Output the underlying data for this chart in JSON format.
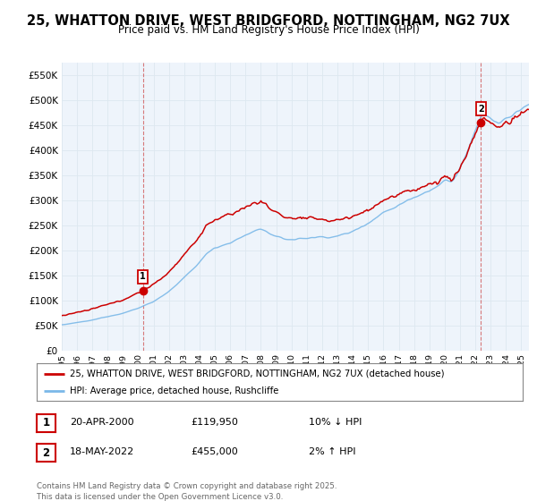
{
  "title": "25, WHATTON DRIVE, WEST BRIDGFORD, NOTTINGHAM, NG2 7UX",
  "subtitle": "Price paid vs. HM Land Registry's House Price Index (HPI)",
  "hpi_color": "#7ab8e8",
  "price_color": "#cc0000",
  "bg_color": "#ffffff",
  "grid_color": "#dde8f0",
  "xlim_start": 1995,
  "xlim_end": 2025.5,
  "ylim_min": 0,
  "ylim_max": 575000,
  "transactions": [
    {
      "date_num": 2000.29,
      "price": 119950,
      "label": "1"
    },
    {
      "date_num": 2022.37,
      "price": 455000,
      "label": "2"
    }
  ],
  "transaction1_label": "1",
  "transaction1_date": "20-APR-2000",
  "transaction1_price": "£119,950",
  "transaction1_hpi": "10% ↓ HPI",
  "transaction2_label": "2",
  "transaction2_date": "18-MAY-2022",
  "transaction2_price": "£455,000",
  "transaction2_hpi": "2% ↑ HPI",
  "legend_entry1": "25, WHATTON DRIVE, WEST BRIDGFORD, NOTTINGHAM, NG2 7UX (detached house)",
  "legend_entry2": "HPI: Average price, detached house, Rushcliffe",
  "footer": "Contains HM Land Registry data © Crown copyright and database right 2025.\nThis data is licensed under the Open Government Licence v3.0."
}
